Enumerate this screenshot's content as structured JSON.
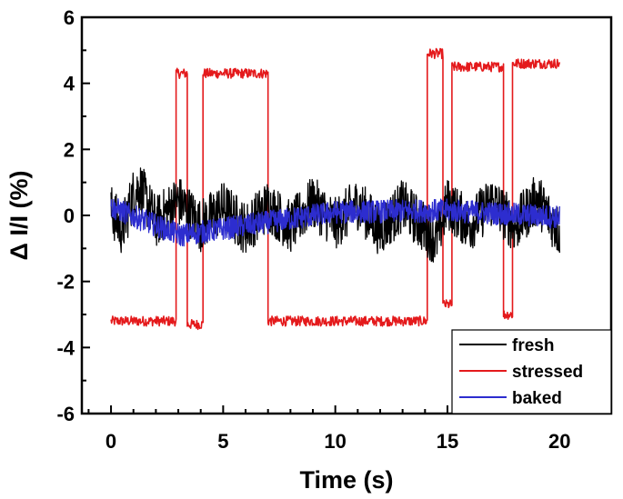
{
  "chart_data": {
    "type": "line",
    "xlabel": "Time (s)",
    "ylabel": "Δ I/I (%)",
    "xlim": [
      -1.3,
      22.3
    ],
    "ylim": [
      -6,
      6
    ],
    "x_ticks": [
      0,
      5,
      10,
      15,
      20
    ],
    "y_ticks": [
      -6,
      -4,
      -2,
      0,
      2,
      4,
      6
    ],
    "x_tick_labels": [
      "0",
      "5",
      "10",
      "15",
      "20"
    ],
    "y_tick_labels": [
      "-6",
      "-4",
      "-2",
      "0",
      "2",
      "4",
      "6"
    ],
    "grid": false,
    "legend_position": "bottom-right",
    "series": [
      {
        "name": "fresh",
        "color": "#000000",
        "x_range": [
          0,
          20
        ],
        "baseline": 0,
        "noise_amplitude": 0.8,
        "points": [
          [
            0.0,
            0.3
          ],
          [
            0.5,
            -0.9
          ],
          [
            1.0,
            1.3
          ],
          [
            1.3,
            1.7
          ],
          [
            2.0,
            -0.4
          ],
          [
            3.0,
            0.9
          ],
          [
            4.0,
            -0.6
          ],
          [
            5.0,
            0.5
          ],
          [
            6.0,
            -0.8
          ],
          [
            7.0,
            0.6
          ],
          [
            8.0,
            -0.7
          ],
          [
            9.0,
            0.8
          ],
          [
            10.0,
            -0.5
          ],
          [
            11.0,
            0.7
          ],
          [
            12.0,
            -0.9
          ],
          [
            13.0,
            0.6
          ],
          [
            14.0,
            -0.8
          ],
          [
            14.5,
            -1.5
          ],
          [
            15.0,
            0.7
          ],
          [
            16.0,
            -0.6
          ],
          [
            17.0,
            0.9
          ],
          [
            18.0,
            -0.7
          ],
          [
            19.0,
            1.0
          ],
          [
            20.0,
            -1.0
          ]
        ]
      },
      {
        "name": "stressed",
        "color": "#e41a1c",
        "x_range": [
          0,
          20
        ],
        "noise_amplitude": 0.15,
        "levels": [
          {
            "from": 0.0,
            "to": 2.9,
            "y": -3.2
          },
          {
            "from": 2.9,
            "to": 3.4,
            "y": 4.3
          },
          {
            "from": 3.4,
            "to": 4.1,
            "y": -3.3
          },
          {
            "from": 4.1,
            "to": 7.0,
            "y": 4.3
          },
          {
            "from": 7.0,
            "to": 14.1,
            "y": -3.2
          },
          {
            "from": 14.1,
            "to": 14.8,
            "y": 4.9
          },
          {
            "from": 14.8,
            "to": 15.2,
            "y": -2.7
          },
          {
            "from": 15.2,
            "to": 17.5,
            "y": 4.5
          },
          {
            "from": 17.5,
            "to": 17.9,
            "y": -3.0
          },
          {
            "from": 17.9,
            "to": 20.0,
            "y": 4.6
          }
        ]
      },
      {
        "name": "baked",
        "color": "#2d2dcf",
        "x_range": [
          0,
          20
        ],
        "baseline": 0,
        "noise_amplitude": 0.35,
        "points": [
          [
            0.0,
            0.5
          ],
          [
            3.1,
            -1.2
          ],
          [
            10.0,
            0.2
          ],
          [
            15.0,
            0.3
          ],
          [
            20.0,
            -0.1
          ]
        ]
      }
    ]
  }
}
